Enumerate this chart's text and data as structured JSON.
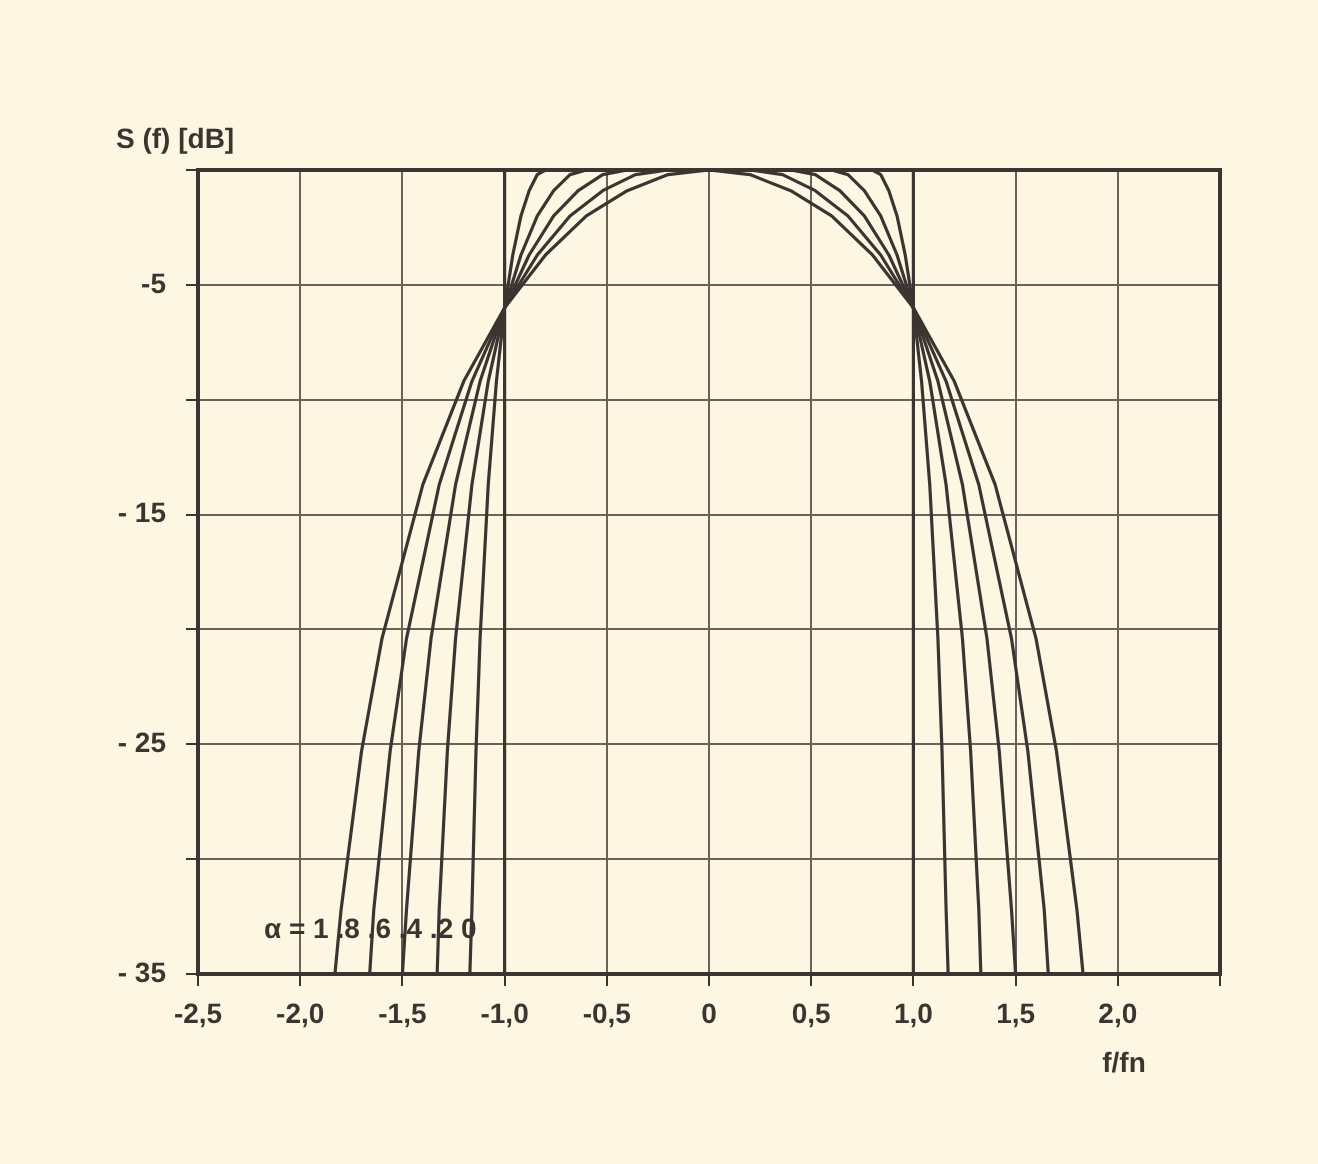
{
  "chart_data": {
    "type": "line",
    "xlabel": "f/fn",
    "ylabel": "S (f) [dB]",
    "annotations": [
      "α = 1 .8 .6 .4 .2 0"
    ],
    "xlim": [
      -2.5,
      2.5
    ],
    "ylim": [
      -35,
      0
    ],
    "xticks": [
      {
        "value": -2.5,
        "label": "-2,5"
      },
      {
        "value": -2,
        "label": "-2,0"
      },
      {
        "value": -1.5,
        "label": "-1,5"
      },
      {
        "value": -1,
        "label": "-1,0"
      },
      {
        "value": -0.5,
        "label": "-0,5"
      },
      0,
      {
        "value": 0.5,
        "label": "0,5"
      },
      {
        "value": 1,
        "label": "1,0"
      },
      {
        "value": 1.5,
        "label": "1,5"
      },
      {
        "value": 2,
        "label": "2,0"
      },
      {
        "value": 2.5,
        "label": null
      }
    ],
    "yticks": [
      {
        "value": 0,
        "label": null
      },
      -5,
      {
        "value": -10,
        "label": null
      },
      {
        "value": -15,
        "label": "- 15"
      },
      {
        "value": -20,
        "label": null
      },
      {
        "value": -25,
        "label": "- 25"
      },
      {
        "value": -30,
        "label": null
      },
      {
        "value": -35,
        "label": "- 35"
      }
    ],
    "grid": true,
    "series": [
      {
        "color": "#3a3530",
        "x": [
          -1.83,
          -1.8,
          -1.7,
          -1.6,
          -1.4,
          -1.2,
          -1.0,
          -0.8,
          -0.6,
          -0.4,
          -0.2,
          0,
          0.2,
          0.4,
          0.6,
          0.8,
          1.0,
          1.2,
          1.4,
          1.6,
          1.7,
          1.8,
          1.83
        ],
        "values": [
          -35,
          -32.2,
          -25.3,
          -20.4,
          -13.7,
          -9.2,
          -6.0,
          -3.7,
          -2.0,
          -0.9,
          -0.2,
          0,
          -0.2,
          -0.9,
          -2.0,
          -3.7,
          -6.0,
          -9.2,
          -13.7,
          -20.4,
          -25.3,
          -32.2,
          -35
        ]
      },
      {
        "color": "#3a3530",
        "x": [
          -1.66,
          -1.64,
          -1.56,
          -1.48,
          -1.32,
          -1.16,
          -1.0,
          -0.84,
          -0.68,
          -0.52,
          -0.36,
          -0.2,
          0.2,
          0.36,
          0.52,
          0.68,
          0.84,
          1.0,
          1.16,
          1.32,
          1.48,
          1.56,
          1.64,
          1.66
        ],
        "values": [
          -35,
          -32.2,
          -25.3,
          -20.4,
          -13.7,
          -9.2,
          -6.0,
          -3.7,
          -2.0,
          -0.9,
          -0.2,
          0,
          0,
          -0.2,
          -0.9,
          -2.0,
          -3.7,
          -6.0,
          -9.2,
          -13.7,
          -20.4,
          -25.3,
          -32.2,
          -35
        ]
      },
      {
        "color": "#3a3530",
        "x": [
          -1.5,
          -1.48,
          -1.42,
          -1.36,
          -1.24,
          -1.12,
          -1.0,
          -0.88,
          -0.76,
          -0.64,
          -0.52,
          -0.4,
          0.4,
          0.52,
          0.64,
          0.76,
          0.88,
          1.0,
          1.12,
          1.24,
          1.36,
          1.42,
          1.48,
          1.5
        ],
        "values": [
          -35,
          -32.2,
          -25.3,
          -20.4,
          -13.7,
          -9.2,
          -6.0,
          -3.7,
          -2.0,
          -0.9,
          -0.2,
          0,
          0,
          -0.2,
          -0.9,
          -2.0,
          -3.7,
          -6.0,
          -9.2,
          -13.7,
          -20.4,
          -25.3,
          -32.2,
          -35
        ]
      },
      {
        "color": "#3a3530",
        "x": [
          -1.33,
          -1.32,
          -1.28,
          -1.24,
          -1.16,
          -1.08,
          -1.0,
          -0.92,
          -0.84,
          -0.76,
          -0.68,
          -0.6,
          0.6,
          0.68,
          0.76,
          0.84,
          0.92,
          1.0,
          1.08,
          1.16,
          1.24,
          1.28,
          1.32,
          1.33
        ],
        "values": [
          -35,
          -32.2,
          -25.3,
          -20.4,
          -13.7,
          -9.2,
          -6.0,
          -3.7,
          -2.0,
          -0.9,
          -0.2,
          0,
          0,
          -0.2,
          -0.9,
          -2.0,
          -3.7,
          -6.0,
          -9.2,
          -13.7,
          -20.4,
          -25.3,
          -32.2,
          -35
        ]
      },
      {
        "color": "#3a3530",
        "x": [
          -1.17,
          -1.16,
          -1.14,
          -1.12,
          -1.08,
          -1.04,
          -1.0,
          -0.96,
          -0.92,
          -0.88,
          -0.84,
          -0.8,
          0.8,
          0.84,
          0.88,
          0.92,
          0.96,
          1.0,
          1.04,
          1.08,
          1.12,
          1.14,
          1.16,
          1.17
        ],
        "values": [
          -35,
          -32.2,
          -25.3,
          -20.4,
          -13.7,
          -9.2,
          -6.0,
          -3.7,
          -2.0,
          -0.9,
          -0.2,
          0,
          0,
          -0.2,
          -0.9,
          -2.0,
          -3.7,
          -6.0,
          -9.2,
          -13.7,
          -20.4,
          -25.3,
          -32.2,
          -35
        ]
      },
      {
        "color": "#3a3530",
        "x": [
          -1,
          -1,
          1,
          1
        ],
        "values": [
          -35,
          0,
          0,
          -35
        ]
      }
    ]
  }
}
